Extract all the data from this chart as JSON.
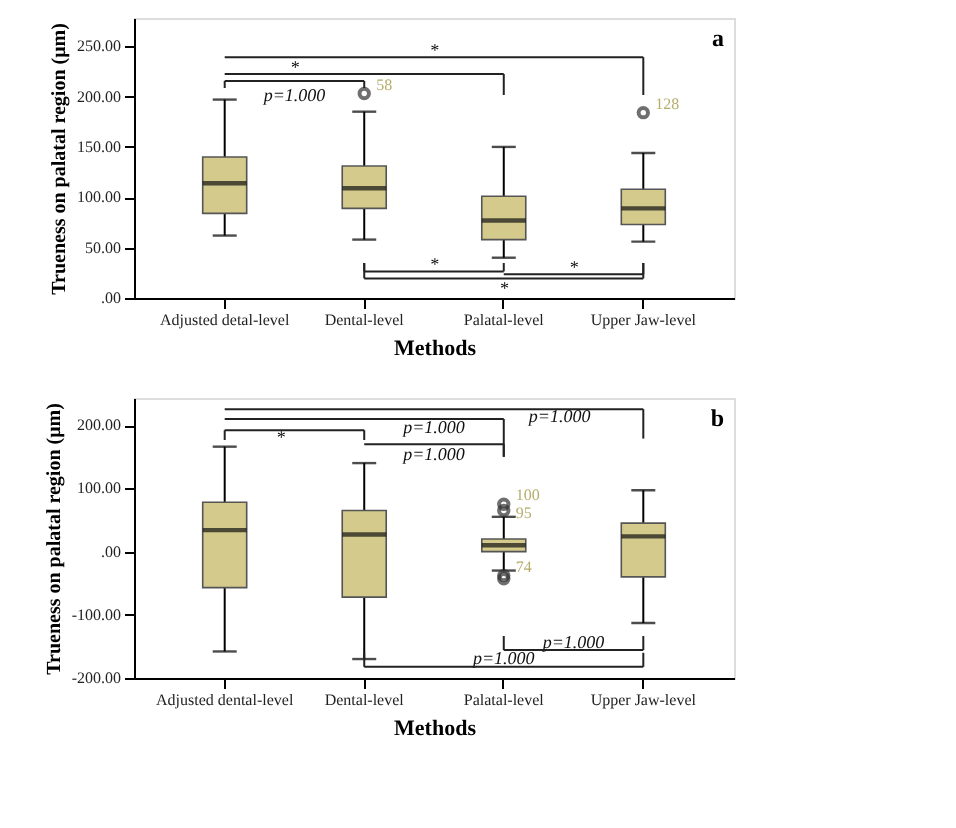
{
  "chart_data": [
    {
      "type": "box",
      "title": "a",
      "xlabel": "Methods",
      "ylabel": "Trueness on palatal region (μm)",
      "categories": [
        "Adjusted detal-level",
        "Dental-level",
        "Palatal-level",
        "Upper Jaw-level"
      ],
      "series": [
        {
          "color": "#d3ca8c",
          "boxes": [
            {
              "low": 62,
              "q1": 84,
              "median": 114,
              "q3": 140,
              "high": 197
            },
            {
              "low": 58,
              "q1": 89,
              "median": 109,
              "q3": 131,
              "high": 185,
              "outliers": [
                203
              ]
            },
            {
              "low": 40,
              "q1": 58,
              "median": 77,
              "q3": 101,
              "high": 150
            },
            {
              "low": 56,
              "q1": 73,
              "median": 89,
              "q3": 108,
              "high": 144,
              "outliers": [
                184
              ]
            }
          ]
        }
      ],
      "ylim": [
        0,
        278
      ],
      "yticks": [
        {
          "value": 0,
          "label": ".00"
        },
        {
          "value": 50,
          "label": "50.00"
        },
        {
          "value": 100,
          "label": "100.00"
        },
        {
          "value": 150,
          "label": "150.00"
        },
        {
          "value": 200,
          "label": "200.00"
        },
        {
          "value": 250,
          "label": "250.00"
        }
      ],
      "annotations": [
        "p=1.000",
        "*",
        "*",
        "*",
        "*",
        "*",
        "58",
        "128"
      ]
    },
    {
      "type": "box",
      "title": "b",
      "xlabel": "Methods",
      "ylabel": "Trueness on palatal region (μm)",
      "categories": [
        "Adjusted dental-level",
        "Dental-level",
        "Palatal-level",
        "Upper Jaw-level"
      ],
      "series": [
        {
          "color": "#d3ca8c",
          "boxes": [
            {
              "low": -158,
              "q1": -57,
              "median": 34,
              "q3": 78,
              "high": 166
            },
            {
              "low": -170,
              "q1": -72,
              "median": 27,
              "q3": 65,
              "high": 140
            },
            {
              "low": -30,
              "q1": 0,
              "median": 10,
              "q3": 20,
              "high": 55,
              "outliers": [
                75,
                65,
                -38,
                -43
              ]
            },
            {
              "low": -113,
              "q1": -40,
              "median": 24,
              "q3": 45,
              "high": 97
            }
          ]
        }
      ],
      "ylim": [
        -200,
        243
      ],
      "yticks": [
        {
          "value": -200,
          "label": "-200.00"
        },
        {
          "value": -100,
          "label": "-100.00"
        },
        {
          "value": 0,
          "label": ".00"
        },
        {
          "value": 100,
          "label": "100.00"
        },
        {
          "value": 200,
          "label": "200.00"
        }
      ],
      "annotations": [
        "*",
        "p=1.000",
        "p=1.000",
        "p=1.000",
        "p=1.000",
        "p=1.000",
        "100",
        "95",
        "74"
      ]
    }
  ]
}
